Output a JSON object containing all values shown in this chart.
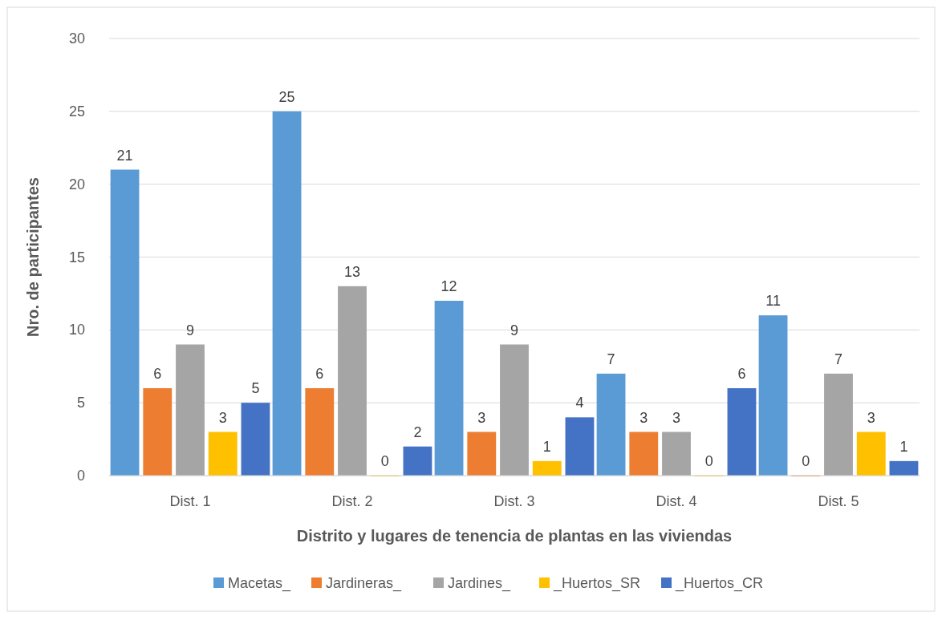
{
  "chart_data": {
    "type": "bar",
    "xlabel": "Distrito y lugares de tenencia de plantas en las viviendas",
    "ylabel": "Nro. de participantes",
    "categories": [
      "Dist. 1",
      "Dist. 2",
      "Dist. 3",
      "Dist. 4",
      "Dist. 5"
    ],
    "series": [
      {
        "name": "Macetas_",
        "color": "#5b9bd5",
        "values": [
          21,
          25,
          12,
          7,
          11
        ]
      },
      {
        "name": "Jardineras_",
        "color": "#ed7d31",
        "values": [
          6,
          6,
          3,
          3,
          0
        ]
      },
      {
        "name": "Jardines_",
        "color": "#a5a5a5",
        "values": [
          9,
          13,
          9,
          3,
          7
        ]
      },
      {
        "name": "_Huertos_SR",
        "color": "#ffc000",
        "values": [
          3,
          0,
          1,
          0,
          3
        ]
      },
      {
        "name": "_Huertos_CR",
        "color": "#4472c4",
        "values": [
          5,
          2,
          4,
          6,
          1
        ]
      }
    ],
    "ylim": [
      0,
      30
    ],
    "yticks": [
      0,
      5,
      10,
      15,
      20,
      25,
      30
    ],
    "grid": "y",
    "legend": "bottom",
    "data_labels": true
  }
}
